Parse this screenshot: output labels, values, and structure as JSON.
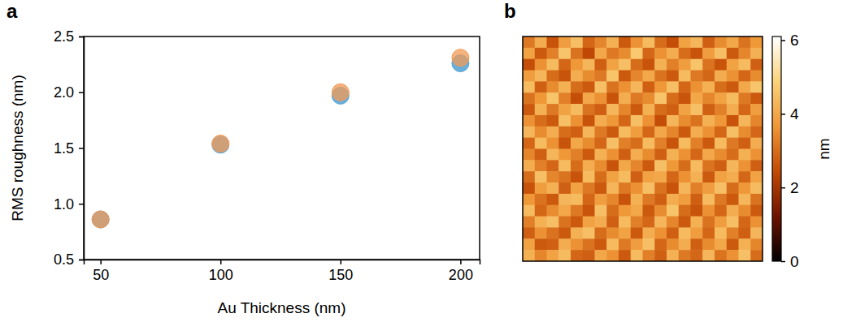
{
  "chart_data": [
    {
      "type": "scatter",
      "panel": "a",
      "x_label": "Au Thickness (nm)",
      "y_label": "RMS roughness (nm)",
      "xlim": [
        43,
        208
      ],
      "ylim": [
        0.5,
        2.5
      ],
      "xticks": [
        50,
        100,
        150,
        200
      ],
      "yticks": [
        0.5,
        {
          "value": 1,
          "label": "1.0"
        },
        1.5,
        {
          "value": 2,
          "label": "2.0"
        },
        2.5
      ],
      "x": [
        50,
        100,
        150,
        200
      ],
      "series": [
        {
          "color": "#5aa5d6",
          "marker": "circle",
          "values": [
            0.86,
            1.53,
            1.97,
            2.26
          ]
        },
        {
          "color": "#f19a55",
          "marker": "circle",
          "values": [
            0.86,
            1.54,
            2.0,
            2.31
          ]
        }
      ]
    },
    {
      "type": "heatmap",
      "panel": "b",
      "tick_labels": false,
      "colorbar_label": "nm",
      "colorbar_range": [
        0,
        6.1
      ],
      "colorbar_ticks": [
        0,
        2,
        4,
        6
      ],
      "z": [
        [
          3.2,
          4.1,
          2.6,
          3.8,
          4.5,
          2.9,
          3.4,
          4.2,
          2.7,
          3.6,
          4.4,
          3.0,
          2.5,
          3.9,
          4.3,
          2.8,
          3.5,
          4.0,
          3.1,
          3.7
        ],
        [
          3.9,
          2.7,
          3.3,
          4.6,
          3.1,
          2.4,
          4.0,
          3.2,
          3.5,
          4.7,
          2.9,
          3.6,
          4.1,
          3.0,
          2.6,
          3.8,
          4.5,
          2.7,
          3.4,
          4.2
        ],
        [
          2.5,
          3.6,
          4.4,
          2.9,
          3.7,
          4.3,
          2.8,
          3.9,
          4.5,
          3.0,
          2.6,
          4.2,
          3.3,
          3.8,
          4.6,
          3.1,
          2.6,
          3.9,
          4.4,
          2.8
        ],
        [
          3.8,
          4.3,
          3.0,
          2.6,
          4.1,
          3.5,
          3.2,
          4.6,
          2.7,
          3.4,
          4.0,
          3.1,
          2.7,
          4.4,
          3.2,
          2.9,
          4.1,
          3.6,
          2.9,
          3.5
        ],
        [
          4.4,
          2.8,
          3.5,
          4.2,
          3.0,
          2.7,
          4.5,
          3.1,
          3.6,
          4.3,
          2.8,
          3.7,
          4.5,
          2.9,
          3.6,
          4.2,
          3.0,
          2.7,
          4.0,
          4.6
        ],
        [
          3.1,
          3.7,
          4.6,
          3.3,
          2.5,
          4.0,
          3.6,
          2.6,
          4.1,
          3.2,
          3.5,
          4.6,
          3.0,
          2.6,
          4.0,
          3.4,
          3.9,
          4.4,
          3.2,
          2.7
        ],
        [
          2.7,
          4.2,
          3.2,
          3.9,
          4.4,
          3.1,
          2.8,
          4.3,
          3.4,
          2.7,
          4.2,
          3.0,
          2.8,
          3.9,
          4.5,
          2.8,
          3.3,
          4.1,
          2.9,
          3.8
        ],
        [
          3.6,
          3.0,
          2.7,
          4.5,
          3.6,
          2.6,
          4.1,
          3.7,
          2.9,
          4.5,
          3.6,
          2.5,
          4.3,
          3.5,
          3.1,
          4.2,
          3.7,
          2.6,
          4.3,
          3.4
        ],
        [
          4.3,
          3.5,
          4.1,
          3.0,
          2.8,
          4.3,
          3.2,
          2.7,
          4.4,
          3.8,
          2.9,
          4.0,
          3.4,
          2.7,
          4.1,
          3.6,
          2.9,
          4.5,
          3.5,
          2.9
        ],
        [
          2.9,
          4.4,
          3.6,
          2.6,
          4.0,
          3.5,
          2.9,
          4.5,
          3.3,
          3.0,
          4.4,
          3.3,
          2.6,
          4.4,
          3.3,
          2.7,
          4.4,
          3.2,
          2.8,
          4.1
        ],
        [
          3.4,
          2.8,
          4.3,
          3.7,
          3.3,
          2.7,
          4.2,
          3.6,
          2.8,
          4.1,
          3.5,
          2.8,
          4.2,
          3.6,
          2.9,
          4.0,
          3.5,
          3.0,
          4.2,
          3.6
        ],
        [
          4.1,
          3.3,
          2.9,
          4.4,
          3.0,
          4.1,
          3.5,
          2.6,
          4.0,
          3.4,
          2.7,
          4.5,
          3.7,
          3.0,
          4.4,
          3.1,
          2.8,
          4.3,
          3.6,
          2.8
        ],
        [
          3.0,
          4.5,
          3.4,
          3.1,
          2.6,
          4.4,
          3.0,
          3.9,
          4.4,
          2.8,
          3.9,
          4.0,
          2.9,
          3.6,
          4.2,
          2.7,
          3.9,
          4.1,
          2.9,
          3.9
        ],
        [
          2.6,
          3.8,
          4.2,
          2.8,
          3.9,
          3.2,
          2.7,
          4.3,
          3.2,
          3.6,
          4.5,
          3.1,
          2.6,
          4.3,
          3.3,
          3.8,
          4.5,
          3.0,
          3.7,
          4.4
        ],
        [
          3.7,
          3.1,
          2.7,
          4.3,
          4.4,
          2.9,
          3.8,
          3.4,
          2.6,
          4.2,
          3.2,
          2.8,
          4.1,
          3.8,
          2.8,
          4.4,
          3.2,
          2.7,
          4.3,
          3.1
        ],
        [
          4.4,
          2.9,
          3.5,
          4.0,
          3.2,
          2.6,
          4.5,
          3.0,
          3.7,
          4.0,
          2.7,
          3.5,
          4.6,
          3.0,
          2.6,
          3.6,
          2.9,
          4.1,
          3.5,
          2.7
        ],
        [
          3.3,
          4.2,
          4.5,
          3.1,
          2.7,
          3.9,
          4.1,
          2.8,
          4.4,
          3.3,
          2.9,
          4.3,
          3.4,
          2.7,
          4.2,
          3.1,
          3.8,
          4.5,
          2.9,
          3.6
        ],
        [
          2.8,
          3.6,
          3.1,
          2.7,
          4.2,
          4.5,
          3.0,
          3.5,
          3.9,
          2.7,
          4.1,
          3.6,
          2.8,
          4.4,
          3.8,
          2.9,
          4.4,
          3.3,
          2.8,
          4.3
        ],
        [
          3.9,
          2.7,
          2.8,
          4.1,
          3.6,
          3.1,
          2.7,
          4.4,
          3.2,
          3.8,
          4.5,
          2.9,
          3.5,
          4.1,
          2.8,
          3.5,
          4.0,
          2.7,
          4.2,
          3.4
        ],
        [
          4.2,
          3.4,
          3.9,
          4.4,
          2.9,
          2.8,
          4.0,
          3.6,
          2.7,
          4.4,
          3.3,
          2.8,
          4.2,
          3.2,
          2.9,
          4.3,
          3.1,
          3.6,
          4.5,
          3.0
        ]
      ]
    }
  ]
}
